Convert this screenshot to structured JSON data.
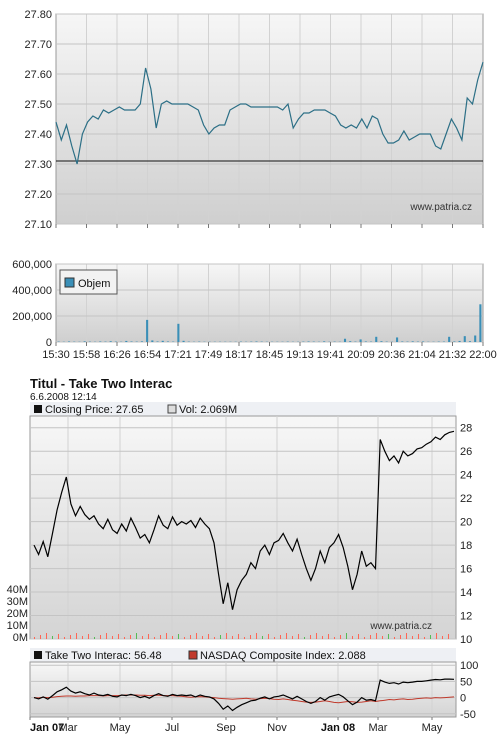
{
  "colors": {
    "line": "#2c6f86",
    "volume": "#3a8fb7",
    "ttwo": "#000000",
    "nasdaq": "#c0392b",
    "vol2": "#ff6655",
    "vol2b": "#55bb55"
  },
  "chart_data": [
    {
      "type": "line",
      "ylim": [
        27.1,
        27.8
      ],
      "yticks": [
        "27.10",
        "27.20",
        "27.30",
        "27.40",
        "27.50",
        "27.60",
        "27.70",
        "27.80"
      ],
      "xticks": [
        "15:30",
        "15:58",
        "16:26",
        "16:54",
        "17:21",
        "17:49",
        "18:17",
        "18:45",
        "19:13",
        "19:41",
        "20:09",
        "20:36",
        "21:04",
        "21:32",
        "22:00"
      ],
      "reference_line": 27.31,
      "watermark": "www.patria.cz",
      "series": [
        {
          "values": [
            27.44,
            27.38,
            27.43,
            27.36,
            27.3,
            27.4,
            27.44,
            27.46,
            27.45,
            27.48,
            27.47,
            27.48,
            27.49,
            27.48,
            27.48,
            27.48,
            27.5,
            27.62,
            27.55,
            27.42,
            27.5,
            27.51,
            27.5,
            27.5,
            27.5,
            27.5,
            27.49,
            27.48,
            27.43,
            27.4,
            27.42,
            27.43,
            27.43,
            27.48,
            27.49,
            27.5,
            27.5,
            27.49,
            27.49,
            27.49,
            27.49,
            27.49,
            27.49,
            27.48,
            27.5,
            27.42,
            27.45,
            27.47,
            27.47,
            27.48,
            27.48,
            27.48,
            27.47,
            27.46,
            27.43,
            27.42,
            27.43,
            27.42,
            27.45,
            27.42,
            27.46,
            27.45,
            27.4,
            27.37,
            27.37,
            27.38,
            27.41,
            27.38,
            27.39,
            27.4,
            27.4,
            27.4,
            27.36,
            27.35,
            27.4,
            27.45,
            27.42,
            27.38,
            27.52,
            27.5,
            27.58,
            27.64
          ]
        }
      ]
    },
    {
      "type": "bar",
      "ylim": [
        0,
        600000
      ],
      "yticks": [
        "0",
        "200,000",
        "400,000",
        "600,000"
      ],
      "xticks": [
        "15:30",
        "15:58",
        "16:26",
        "16:54",
        "17:21",
        "17:49",
        "18:17",
        "18:45",
        "19:13",
        "19:41",
        "20:09",
        "20:36",
        "21:04",
        "21:32",
        "22:00"
      ],
      "legend": "Objem",
      "series": [
        {
          "name": "Objem",
          "values": [
            3000,
            2000,
            4000,
            2500,
            2000,
            5000,
            3000,
            2000,
            4000,
            3000,
            6000,
            3000,
            2000,
            8000,
            4000,
            3000,
            5000,
            170000,
            12000,
            4000,
            9000,
            4000,
            3000,
            140000,
            9000,
            3000,
            2000,
            3000,
            2000,
            2000,
            2000,
            2000,
            2000,
            2000,
            2000,
            3000,
            2000,
            3000,
            4000,
            3000,
            2000,
            2000,
            2000,
            2000,
            3000,
            2000,
            2000,
            3000,
            4000,
            3000,
            2000,
            5000,
            2000,
            3000,
            2000,
            25000,
            6000,
            3000,
            20000,
            4000,
            3000,
            40000,
            6000,
            3000,
            2000,
            35000,
            4000,
            3000,
            5000,
            3000,
            4000,
            2000,
            2000,
            3000,
            3000,
            40000,
            4000,
            8000,
            45000,
            6000,
            50000,
            290000
          ]
        }
      ]
    },
    {
      "type": "line",
      "title": "Titul - Take Two Interac",
      "date": "6.6.2008 12:14",
      "legend": [
        {
          "name": "Closing Price:",
          "value": "27.65"
        },
        {
          "name": "Vol:",
          "value": "2.069M"
        }
      ],
      "ylim": [
        10,
        29
      ],
      "yticks": [
        "10",
        "12",
        "14",
        "16",
        "18",
        "20",
        "22",
        "24",
        "26",
        "28"
      ],
      "vol_ticks": [
        "0M",
        "10M",
        "20M",
        "30M",
        "40M"
      ],
      "xticks": [
        "Jan 07",
        "Mar",
        "May",
        "Jul",
        "Sep",
        "Nov",
        "Jan 08",
        "Mar",
        "May"
      ],
      "watermark": "www.patria.cz",
      "series": [
        {
          "name": "Closing Price",
          "values": [
            18.0,
            17.2,
            18.3,
            17.0,
            19.0,
            21.0,
            22.5,
            23.8,
            21.5,
            20.5,
            21.3,
            20.6,
            20.2,
            20.5,
            19.8,
            19.4,
            20.2,
            19.3,
            19.0,
            19.8,
            19.2,
            20.3,
            19.5,
            18.6,
            18.9,
            18.2,
            19.3,
            20.5,
            19.7,
            19.4,
            20.4,
            19.7,
            20.0,
            19.8,
            20.1,
            19.5,
            20.3,
            19.8,
            19.4,
            18.2,
            15.5,
            13.0,
            14.8,
            12.5,
            14.2,
            15.0,
            15.5,
            16.5,
            16.0,
            17.5,
            18.0,
            17.2,
            18.2,
            18.4,
            19.0,
            18.2,
            17.5,
            18.5,
            17.2,
            16.0,
            15.0,
            16.0,
            17.5,
            16.5,
            17.8,
            18.2,
            18.9,
            17.8,
            16.2,
            14.2,
            15.5,
            17.5,
            16.2,
            16.5,
            16.0,
            27.0,
            26.0,
            25.2,
            25.6,
            25.0,
            26.0,
            25.6,
            25.8,
            26.2,
            26.3,
            26.6,
            26.8,
            27.2,
            27.0,
            27.4,
            27.6,
            27.7
          ]
        }
      ]
    },
    {
      "type": "line",
      "ylim": [
        -60,
        110
      ],
      "yticks": [
        "-50",
        "0",
        "50",
        "100"
      ],
      "xticks": [
        "Jan 07",
        "Mar",
        "May",
        "Jul",
        "Sep",
        "Nov",
        "Jan 08",
        "Mar",
        "May"
      ],
      "legend": [
        {
          "name": "Take Two Interac:",
          "value": "56.48"
        },
        {
          "name": "NASDAQ Composite Index:",
          "value": "2.088"
        }
      ],
      "series": [
        {
          "name": "Take Two Interac",
          "values": [
            0,
            -4,
            2,
            -5,
            6,
            18,
            24,
            32,
            20,
            14,
            18,
            12,
            8,
            14,
            8,
            6,
            10,
            4,
            2,
            8,
            6,
            10,
            6,
            0,
            4,
            -2,
            6,
            12,
            6,
            4,
            10,
            6,
            8,
            6,
            8,
            2,
            8,
            4,
            2,
            -4,
            -18,
            -36,
            -26,
            -40,
            -30,
            -22,
            -16,
            -10,
            -8,
            -2,
            2,
            -4,
            2,
            4,
            8,
            2,
            -4,
            4,
            -4,
            -12,
            -18,
            -12,
            0,
            -8,
            2,
            6,
            10,
            2,
            -10,
            -22,
            -14,
            0,
            -8,
            -6,
            -10,
            54,
            48,
            44,
            46,
            42,
            48,
            46,
            48,
            50,
            50,
            52,
            54,
            56,
            55,
            57,
            57,
            56.48
          ]
        },
        {
          "name": "NASDAQ Composite Index",
          "values": [
            0,
            -1,
            1,
            0,
            1,
            3,
            4,
            5,
            5,
            4,
            5,
            5,
            6,
            6,
            6,
            5,
            6,
            6,
            6,
            7,
            8,
            8,
            8,
            7,
            7,
            6,
            7,
            7,
            6,
            6,
            6,
            5,
            4,
            2,
            1,
            2,
            3,
            2,
            1,
            0,
            -2,
            -3,
            -4,
            -5,
            -4,
            -3,
            -2,
            -4,
            -5,
            -3,
            -2,
            -3,
            -5,
            -6,
            -4,
            -6,
            -8,
            -10,
            -12,
            -14,
            -15,
            -14,
            -12,
            -10,
            -12,
            -15,
            -16,
            -14,
            -12,
            -13,
            -15,
            -14,
            -12,
            -10,
            -12,
            -10,
            -8,
            -6,
            -7,
            -5,
            -4,
            -6,
            -5,
            -3,
            -2,
            -1,
            -2,
            0,
            -1,
            0,
            1,
            2
          ]
        }
      ]
    }
  ]
}
